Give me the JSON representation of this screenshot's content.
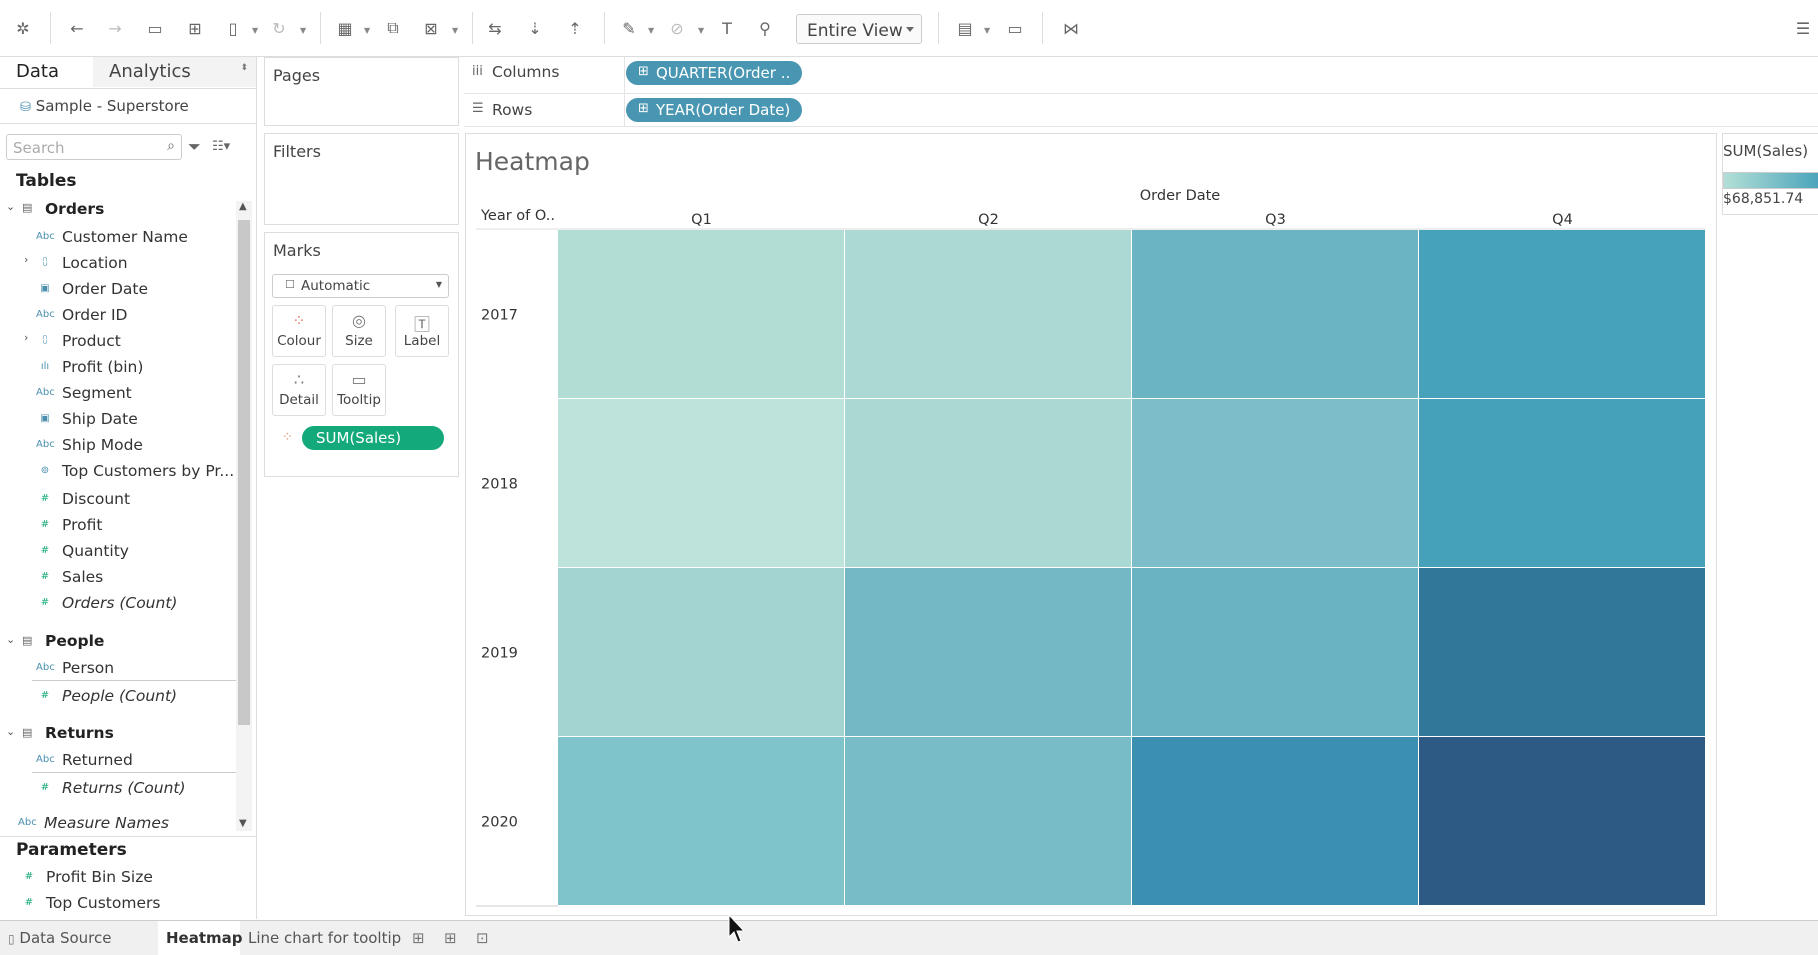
{
  "toolbar": {
    "fit_label": "Entire View"
  },
  "data_pane": {
    "tab_data": "Data",
    "tab_analytics": "Analytics",
    "datasource": "Sample - Superstore",
    "search_placeholder": "Search",
    "tables_title": "Tables",
    "groups": [
      {
        "name": "Orders",
        "fields": [
          {
            "icon": "Abc",
            "label": "Customer Name"
          },
          {
            "icon": "geo",
            "label": "Location"
          },
          {
            "icon": "date",
            "label": "Order Date"
          },
          {
            "icon": "Abc",
            "label": "Order ID"
          },
          {
            "icon": "hier",
            "label": "Product"
          },
          {
            "icon": "bin",
            "label": "Profit (bin)"
          },
          {
            "icon": "Abc",
            "label": "Segment"
          },
          {
            "icon": "date",
            "label": "Ship Date"
          },
          {
            "icon": "Abc",
            "label": "Ship Mode"
          },
          {
            "icon": "set",
            "label": "Top Customers by Pr..."
          },
          {
            "icon": "#",
            "label": "Discount"
          },
          {
            "icon": "#",
            "label": "Profit"
          },
          {
            "icon": "#",
            "label": "Quantity"
          },
          {
            "icon": "#",
            "label": "Sales"
          },
          {
            "icon": "#",
            "label": "Orders (Count)"
          }
        ]
      },
      {
        "name": "People",
        "fields": [
          {
            "icon": "Abc",
            "label": "Person"
          },
          {
            "icon": "#",
            "label": "People (Count)"
          }
        ]
      },
      {
        "name": "Returns",
        "fields": [
          {
            "icon": "Abc",
            "label": "Returned"
          },
          {
            "icon": "#",
            "label": "Returns (Count)"
          }
        ]
      }
    ],
    "measure_names": "Measure Names",
    "parameters_title": "Parameters",
    "parameters": [
      "Profit Bin Size",
      "Top Customers"
    ]
  },
  "cards": {
    "pages": "Pages",
    "filters": "Filters",
    "marks": "Marks",
    "mark_type": "Automatic",
    "mark_buttons": [
      "Colour",
      "Size",
      "Label",
      "Detail",
      "Tooltip"
    ],
    "color_pill": "SUM(Sales)"
  },
  "shelves": {
    "columns_label": "Columns",
    "rows_label": "Rows",
    "columns_pill": "QUARTER(Order ..",
    "rows_pill": "YEAR(Order Date)"
  },
  "viz": {
    "title": "Heatmap",
    "column_header": "Order Date",
    "row_header": "Year of O..",
    "legend_title": "SUM(Sales)",
    "legend_min": "$68,851.74",
    "legend_max_partial": "$"
  },
  "chart_data": {
    "type": "heatmap",
    "title": "Heatmap",
    "xlabel": "Order Date",
    "ylabel": "Year of O..",
    "x": [
      "Q1",
      "Q2",
      "Q3",
      "Q4"
    ],
    "y": [
      "2017",
      "2018",
      "2019",
      "2020"
    ],
    "colors": [
      [
        "#b1ddd5",
        "#acd9d3",
        "#6ab4c3",
        "#46a2bb"
      ],
      [
        "#bde3da",
        "#a9d9d2",
        "#7cbdc9",
        "#45a0ba"
      ],
      [
        "#a3d4d1",
        "#74b8c6",
        "#6ab3c3",
        "#30779a"
      ],
      [
        "#80c4cb",
        "#78bcc8",
        "#3b90b1",
        "#2c5a84"
      ]
    ],
    "legend": {
      "title": "SUM(Sales)",
      "min_label": "$68,851.74"
    }
  },
  "bottom_tabs": {
    "data_source": "Data Source",
    "tabs": [
      "Heatmap",
      "Line chart for tooltip"
    ]
  }
}
